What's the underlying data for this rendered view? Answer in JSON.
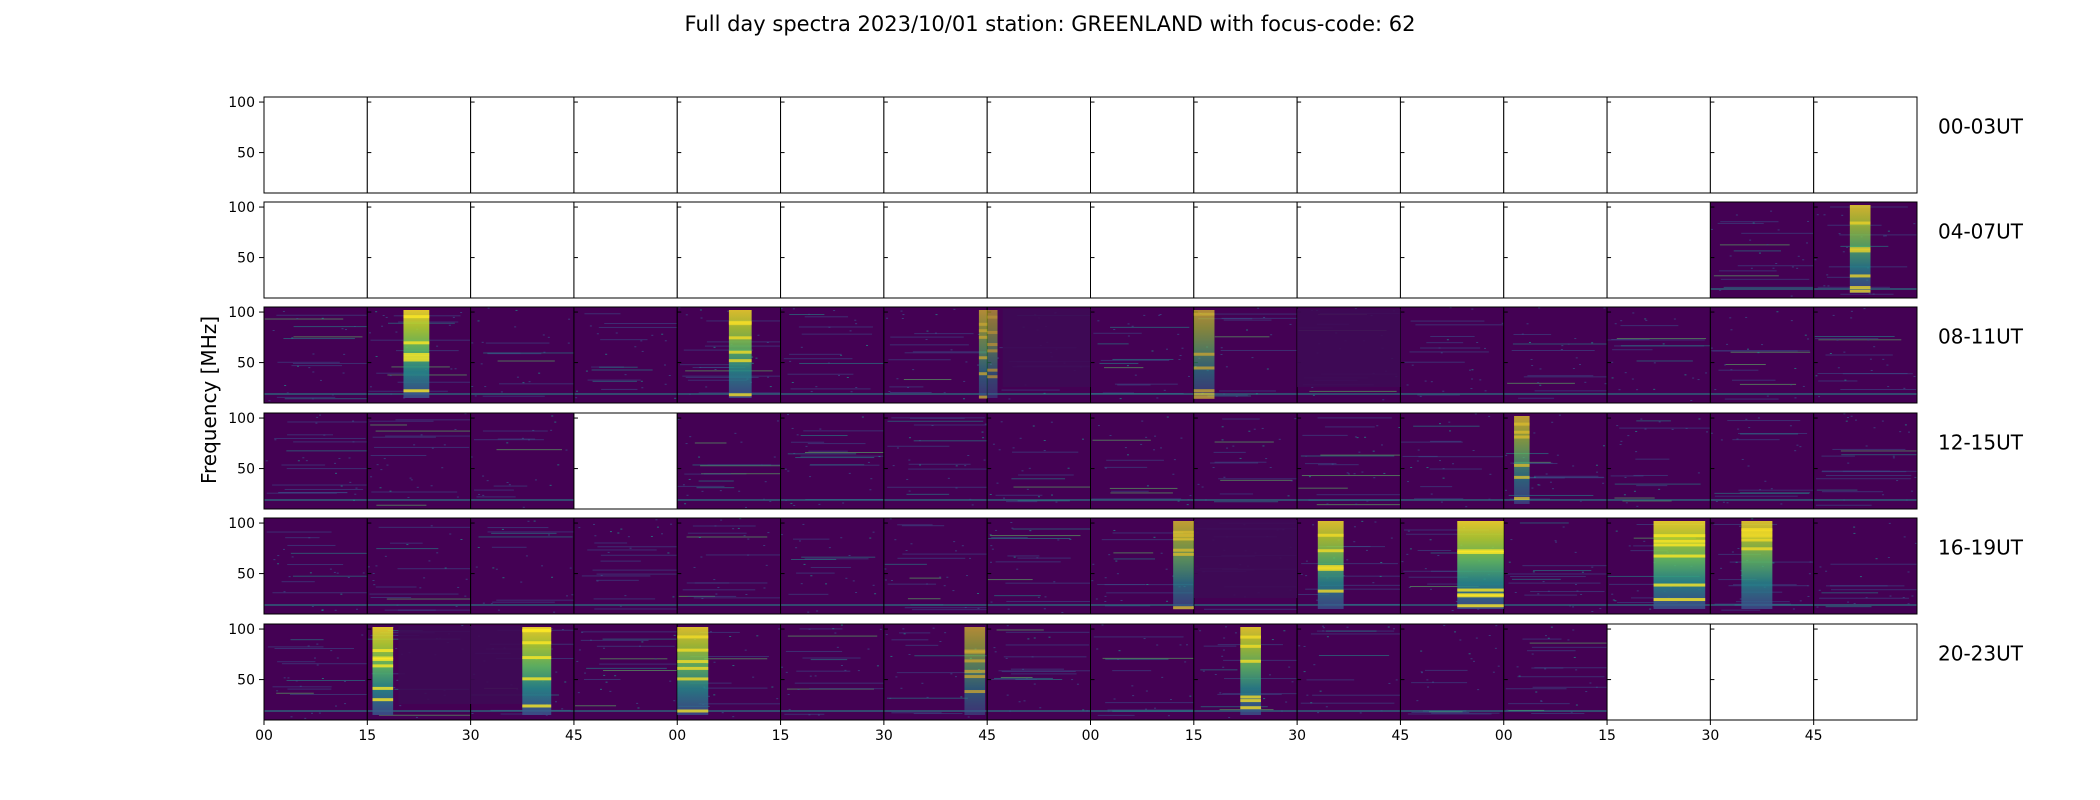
{
  "chart_data": {
    "type": "heatmap",
    "title": "Full day spectra 2023/10/01 station: GREENLAND with focus-code: 62",
    "ylabel": "Frequency [MHz]",
    "y_ticks": [
      "100",
      "50"
    ],
    "x_ticks": [
      "00",
      "15",
      "30",
      "45",
      "00",
      "15",
      "30",
      "45",
      "00",
      "15",
      "30",
      "45",
      "00",
      "15",
      "30",
      "45"
    ],
    "colormap": [
      "#440154",
      "#3b528b",
      "#21918c",
      "#5ec962",
      "#fde725"
    ],
    "rows": [
      {
        "label": "00-03UT",
        "panels": [
          "empty",
          "empty",
          "empty",
          "empty",
          "empty",
          "empty",
          "empty",
          "empty",
          "empty",
          "empty",
          "empty",
          "empty",
          "empty",
          "empty",
          "empty",
          "empty"
        ]
      },
      {
        "label": "04-07UT",
        "panels": [
          "empty",
          "empty",
          "empty",
          "empty",
          "empty",
          "empty",
          "empty",
          "empty",
          "empty",
          "empty",
          "empty",
          "empty",
          "empty",
          "empty",
          "data",
          "data"
        ]
      },
      {
        "label": "08-11UT",
        "panels": [
          "data",
          "data",
          "data",
          "data",
          "data",
          "data",
          "data",
          "data",
          "data",
          "data",
          "data",
          "data",
          "data",
          "data",
          "data",
          "data"
        ]
      },
      {
        "label": "12-15UT",
        "panels": [
          "data",
          "data",
          "data",
          "empty",
          "data",
          "data",
          "data",
          "data",
          "data",
          "data",
          "data",
          "data",
          "data",
          "data",
          "data",
          "data"
        ]
      },
      {
        "label": "16-19UT",
        "panels": [
          "data",
          "data",
          "data",
          "data",
          "data",
          "data",
          "data",
          "data",
          "data",
          "data",
          "data",
          "data",
          "data",
          "data",
          "data",
          "data"
        ]
      },
      {
        "label": "20-23UT",
        "panels": [
          "data",
          "data",
          "data",
          "data",
          "data",
          "data",
          "data",
          "data",
          "data",
          "data",
          "data",
          "data",
          "data",
          "empty",
          "empty",
          "empty"
        ]
      }
    ],
    "bursts": [
      {
        "row": 1,
        "panel": 15,
        "start": 0.35,
        "end": 0.55,
        "intensity": 0.9
      },
      {
        "row": 2,
        "panel": 1,
        "start": 0.35,
        "end": 0.6,
        "intensity": 1.0
      },
      {
        "row": 2,
        "panel": 4,
        "start": 0.5,
        "end": 0.72,
        "intensity": 0.95
      },
      {
        "row": 2,
        "panel": 6,
        "start": 0.92,
        "end": 1.0,
        "intensity": 0.7
      },
      {
        "row": 2,
        "panel": 7,
        "start": 0.0,
        "end": 0.1,
        "intensity": 0.6
      },
      {
        "row": 2,
        "panel": 9,
        "start": 0.0,
        "end": 0.2,
        "intensity": 0.7
      },
      {
        "row": 3,
        "panel": 12,
        "start": 0.1,
        "end": 0.25,
        "intensity": 0.8
      },
      {
        "row": 4,
        "panel": 8,
        "start": 0.8,
        "end": 1.0,
        "intensity": 0.8
      },
      {
        "row": 4,
        "panel": 10,
        "start": 0.2,
        "end": 0.45,
        "intensity": 0.95
      },
      {
        "row": 4,
        "panel": 11,
        "start": 0.55,
        "end": 1.0,
        "intensity": 1.0
      },
      {
        "row": 4,
        "panel": 13,
        "start": 0.45,
        "end": 0.95,
        "intensity": 1.0
      },
      {
        "row": 4,
        "panel": 14,
        "start": 0.3,
        "end": 0.6,
        "intensity": 0.95
      },
      {
        "row": 5,
        "panel": 1,
        "start": 0.05,
        "end": 0.25,
        "intensity": 1.0
      },
      {
        "row": 5,
        "panel": 2,
        "start": 0.5,
        "end": 0.78,
        "intensity": 1.0
      },
      {
        "row": 5,
        "panel": 4,
        "start": 0.0,
        "end": 0.3,
        "intensity": 0.95
      },
      {
        "row": 5,
        "panel": 6,
        "start": 0.78,
        "end": 0.98,
        "intensity": 0.7
      },
      {
        "row": 5,
        "panel": 9,
        "start": 0.45,
        "end": 0.65,
        "intensity": 0.95
      }
    ],
    "quiet_blocks": [
      {
        "row": 2,
        "panel": 7,
        "start": 0.15,
        "end": 1.0
      },
      {
        "row": 2,
        "panel": 10,
        "start": 0.0,
        "end": 1.0
      },
      {
        "row": 4,
        "panel": 9,
        "start": 0.0,
        "end": 1.0
      },
      {
        "row": 5,
        "panel": 1,
        "start": 0.3,
        "end": 1.0
      },
      {
        "row": 5,
        "panel": 2,
        "start": 0.0,
        "end": 0.5
      }
    ]
  }
}
